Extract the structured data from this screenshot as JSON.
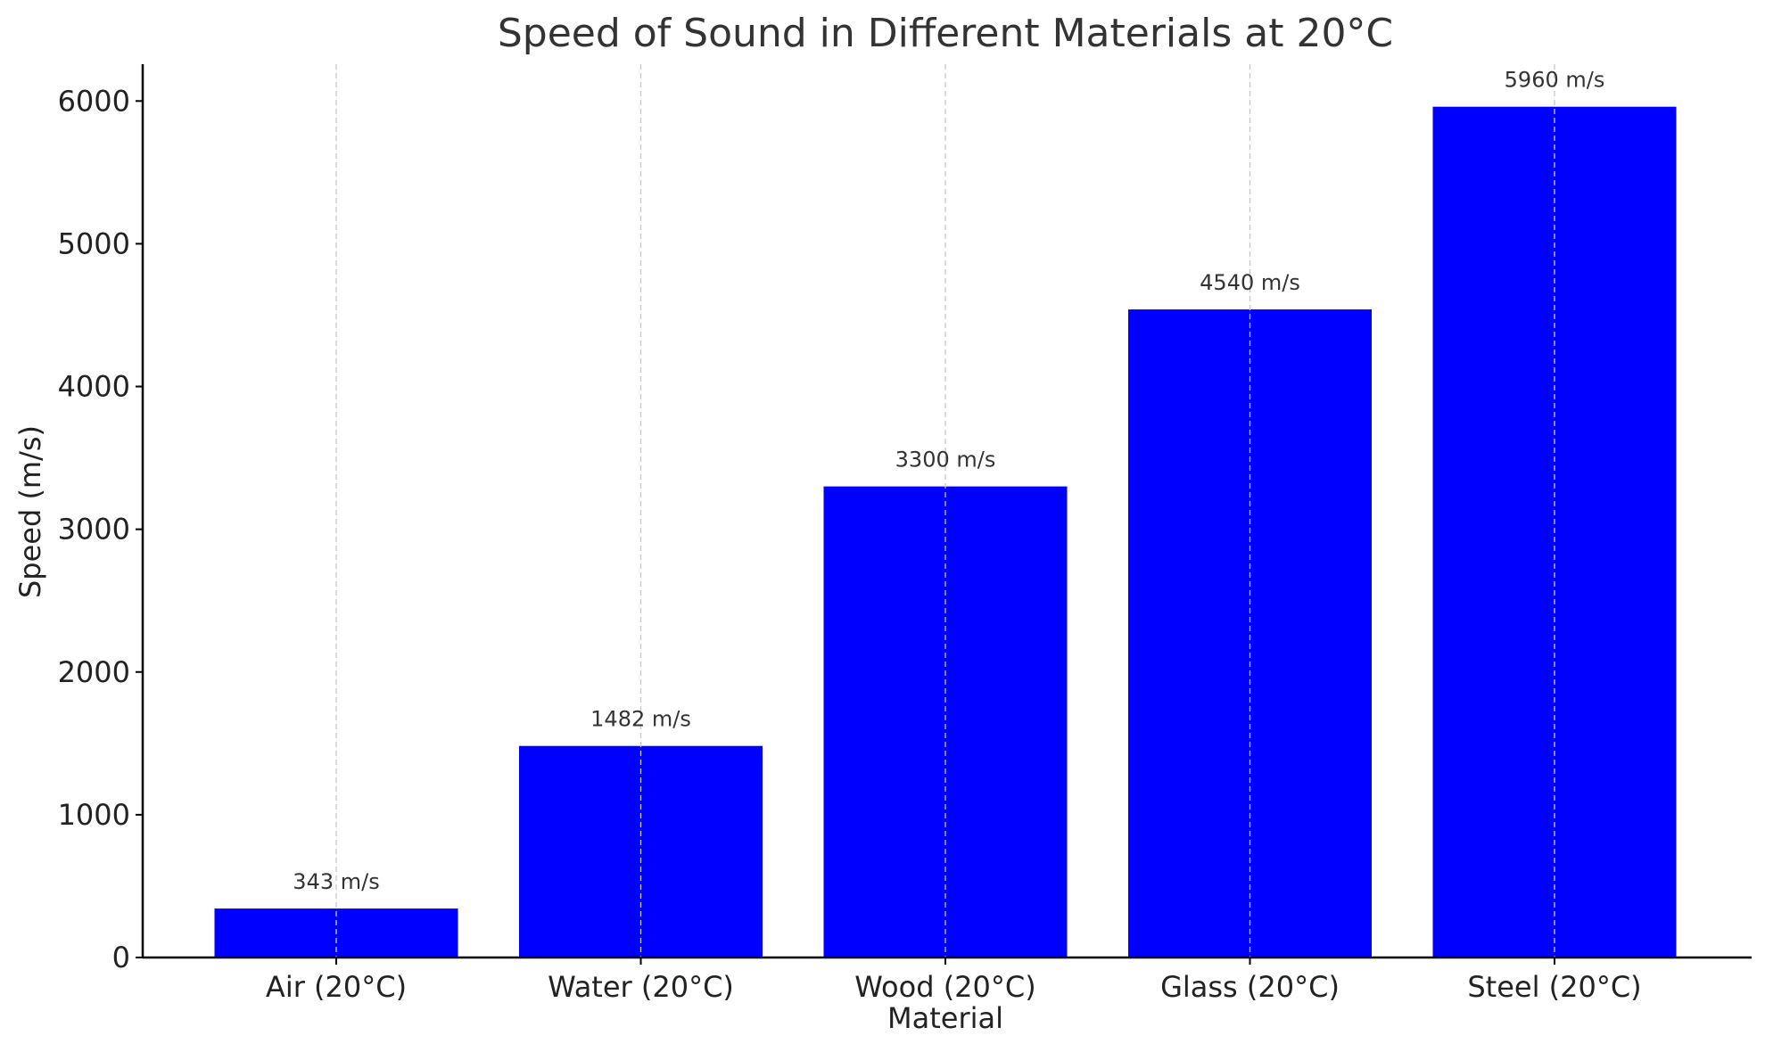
{
  "chart_data": {
    "type": "bar",
    "title": "Speed of Sound in Different Materials at 20°C",
    "xlabel": "Material",
    "ylabel": "Speed (m/s)",
    "categories": [
      "Air (20°C)",
      "Water (20°C)",
      "Wood (20°C)",
      "Glass (20°C)",
      "Steel (20°C)"
    ],
    "values": [
      343,
      1482,
      3300,
      4540,
      5960
    ],
    "data_labels": [
      "343 m/s",
      "1482 m/s",
      "3300 m/s",
      "4540 m/s",
      "5960 m/s"
    ],
    "ylim": [
      0,
      6258
    ],
    "yticks": [
      0,
      1000,
      2000,
      3000,
      4000,
      5000,
      6000
    ],
    "grid": "vertical dashed",
    "legend": "none",
    "bar_color": "#0000ff",
    "grid_color": "#c8c8c8",
    "axis_color": "#000000"
  }
}
